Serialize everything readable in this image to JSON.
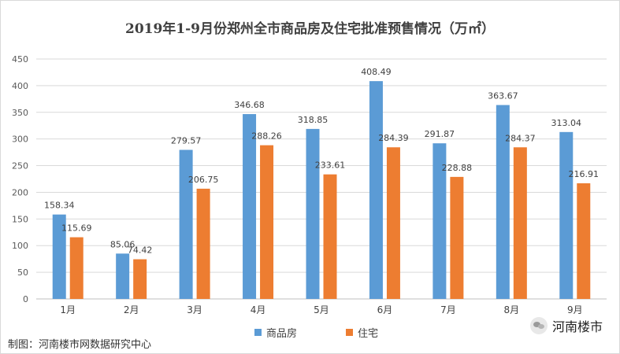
{
  "chart_data": {
    "type": "bar",
    "title": "2019年1-9月份郑州全市商品房及住宅批准预售情况（万㎡）",
    "categories": [
      "1月",
      "2月",
      "3月",
      "4月",
      "5月",
      "6月",
      "7月",
      "8月",
      "9月"
    ],
    "series": [
      {
        "name": "商品房",
        "color": "#5b9bd5",
        "values": [
          158.34,
          85.06,
          279.57,
          346.68,
          318.85,
          408.49,
          291.87,
          363.67,
          313.04
        ]
      },
      {
        "name": "住宅",
        "color": "#ed7d31",
        "values": [
          115.69,
          74.42,
          206.75,
          288.26,
          233.61,
          284.39,
          228.88,
          284.37,
          216.91
        ]
      }
    ],
    "ylim": [
      0,
      450
    ],
    "yticks": [
      0,
      50,
      100,
      150,
      200,
      250,
      300,
      350,
      400,
      450
    ],
    "grid": true,
    "legend_position": "bottom"
  },
  "footer": {
    "source": "制图：河南楼市网数据研究中心",
    "brand": "河南楼市",
    "brand_icon": "wechat-icon"
  }
}
